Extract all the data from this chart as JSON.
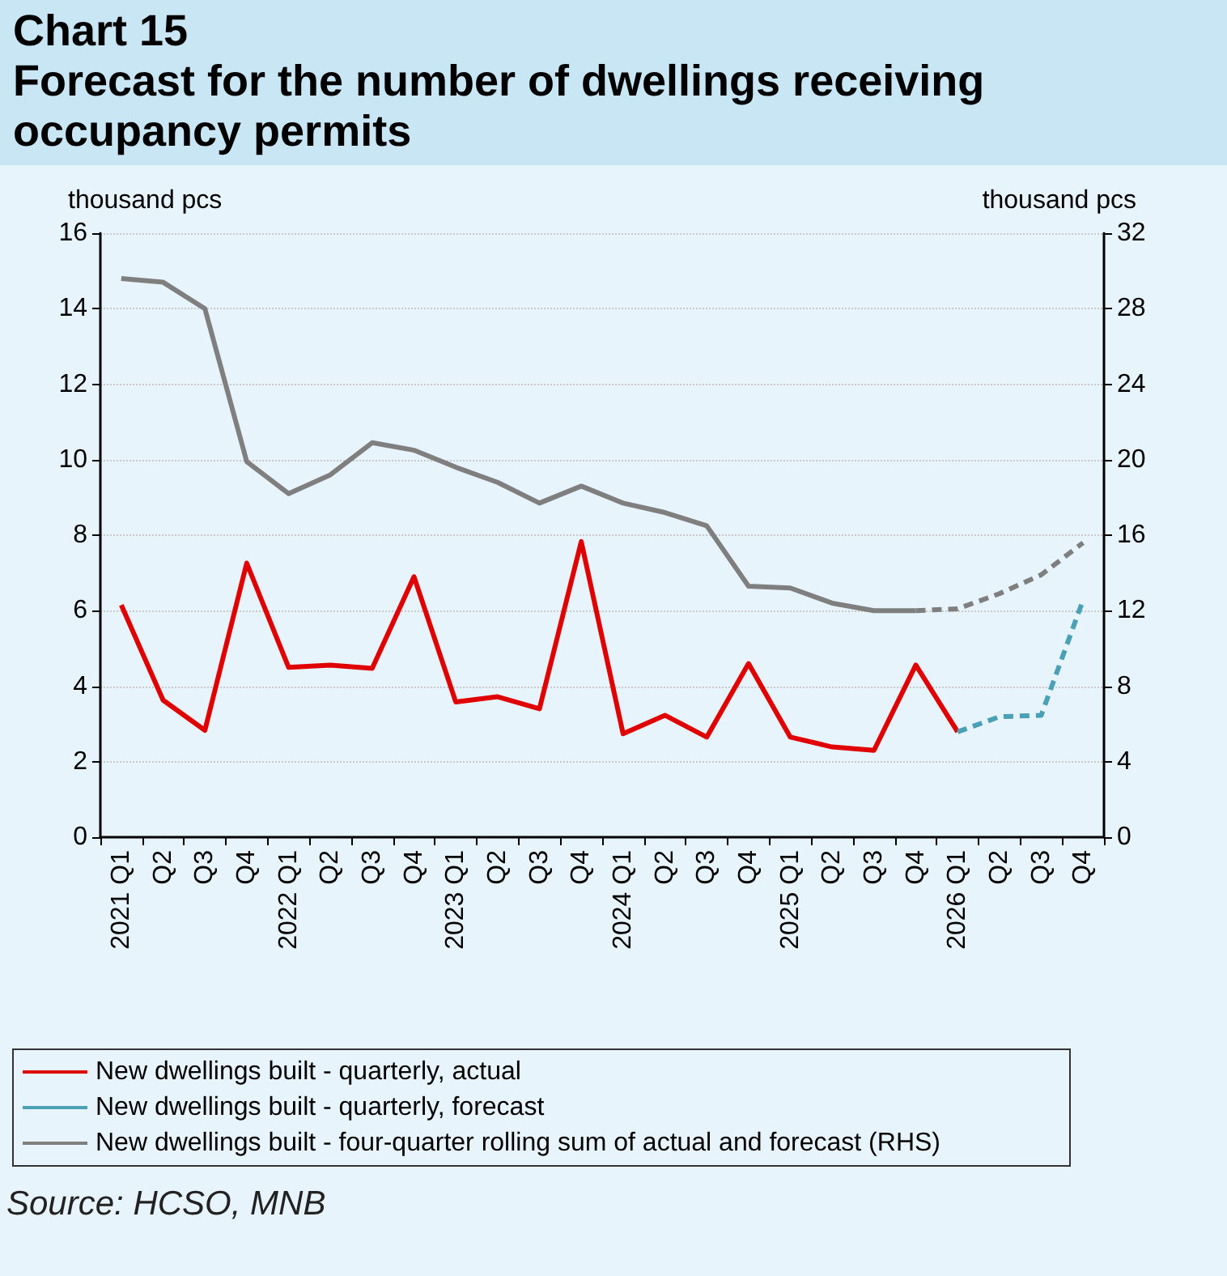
{
  "chart_data": {
    "type": "line",
    "title": "Chart 15",
    "subtitle": "Forecast for the number of dwellings receiving occupancy permits",
    "ylabel": "thousand pcs",
    "y2label": "thousand pcs",
    "annotations": [
      "Source: HCSO, MNB"
    ],
    "categories": [
      "2021 Q1",
      "Q2",
      "Q3",
      "Q4",
      "2022 Q1",
      "Q2",
      "Q3",
      "Q4",
      "2023 Q1",
      "Q2",
      "Q3",
      "Q4",
      "2024 Q1",
      "Q2",
      "Q3",
      "Q4",
      "2025 Q1",
      "Q2",
      "Q3",
      "Q4",
      "2026 Q1",
      "Q2",
      "Q3",
      "Q4"
    ],
    "series": [
      {
        "name": "New dwellings built - quarterly, actual",
        "color": "#e00000",
        "line_style": "solid",
        "values": [
          6.15,
          3.63,
          2.83,
          7.26,
          4.5,
          4.56,
          4.47,
          6.9,
          3.58,
          3.72,
          3.4,
          7.83,
          2.74,
          3.23,
          2.65,
          4.6,
          2.65,
          2.39,
          2.3,
          4.56,
          2.79,
          null,
          null,
          null
        ]
      },
      {
        "name": "New dwellings built - quarterly, forecast",
        "color": "#4aa0b5",
        "line_style": "dashed",
        "values": [
          null,
          null,
          null,
          null,
          null,
          null,
          null,
          null,
          null,
          null,
          null,
          null,
          null,
          null,
          null,
          null,
          null,
          null,
          null,
          null,
          2.79,
          3.19,
          3.23,
          6.28
        ]
      },
      {
        "name": "New dwellings built - four-quarter rolling sum of actual and forecast (RHS)",
        "color": "#7f7f7f",
        "line_style": "solid",
        "axis": "y2",
        "values": [
          29.6,
          29.4,
          28.0,
          19.9,
          18.2,
          19.2,
          20.9,
          20.5,
          19.6,
          18.8,
          17.7,
          18.6,
          17.7,
          17.2,
          16.5,
          13.3,
          13.2,
          12.4,
          12.0,
          12.0,
          null,
          null,
          null,
          null
        ]
      },
      {
        "color": "#7f7f7f",
        "line_style": "dashed",
        "axis": "y2",
        "values": [
          null,
          null,
          null,
          null,
          null,
          null,
          null,
          null,
          null,
          null,
          null,
          null,
          null,
          null,
          null,
          null,
          null,
          null,
          null,
          12.0,
          12.1,
          12.9,
          13.9,
          15.6
        ]
      }
    ],
    "ylim": [
      0,
      16
    ],
    "yticks": [
      0,
      2,
      4,
      6,
      8,
      10,
      12,
      14,
      16
    ],
    "y2lim": [
      0,
      32
    ],
    "y2ticks": [
      0,
      4,
      8,
      12,
      16,
      20,
      24,
      28,
      32
    ],
    "grid": "y",
    "legend": "bottom",
    "marker": "none"
  }
}
